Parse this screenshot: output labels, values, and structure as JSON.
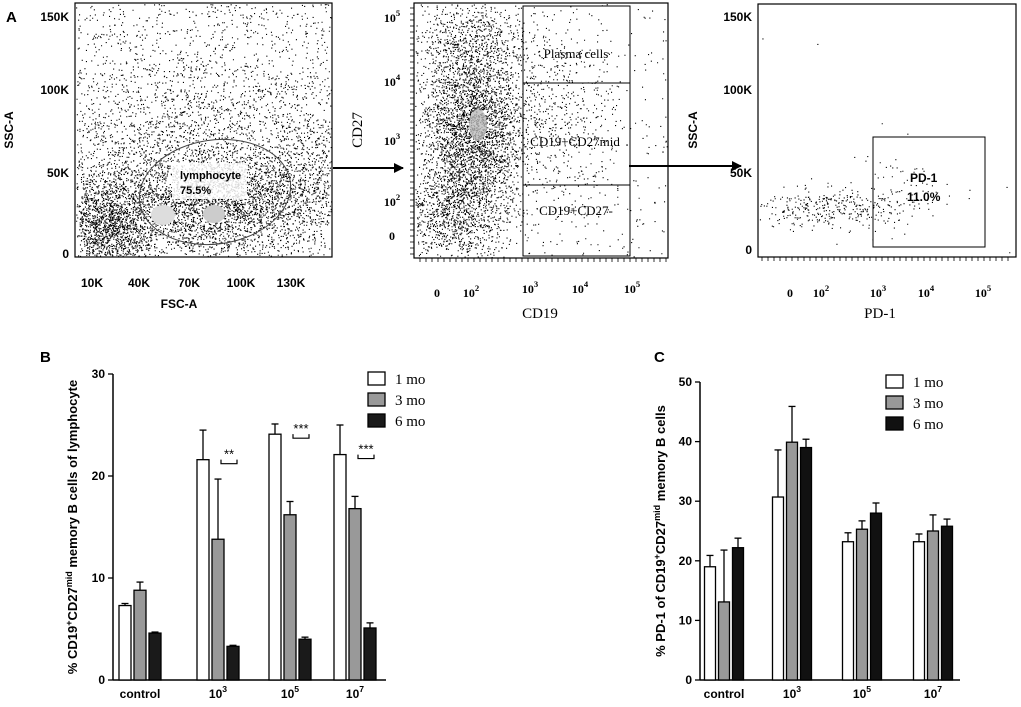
{
  "panel_labels": {
    "a": "A",
    "b": "B",
    "c": "C"
  },
  "flow": {
    "p1": {
      "xlabel": "FSC-A",
      "ylabel": "SSC-A",
      "xticks": [
        "10K",
        "40K",
        "70K",
        "100K",
        "130K"
      ],
      "yticks": [
        "150K",
        "100K",
        "50K",
        "0"
      ],
      "gate_name": "lymphocyte",
      "gate_pct": "75.5%"
    },
    "p2": {
      "xlabel": "CD19",
      "ylabel": "CD27",
      "xticks": [
        {
          "b": "0",
          "e": ""
        },
        {
          "b": "10",
          "e": "2"
        },
        {
          "b": "10",
          "e": "3"
        },
        {
          "b": "10",
          "e": "4"
        },
        {
          "b": "10",
          "e": "5"
        }
      ],
      "yticks": [
        {
          "b": "10",
          "e": "5"
        },
        {
          "b": "10",
          "e": "4"
        },
        {
          "b": "10",
          "e": "3"
        },
        {
          "b": "10",
          "e": "2"
        },
        {
          "b": "0",
          "e": ""
        }
      ],
      "gates": [
        "Plasma cells",
        "CD19+CD27mid",
        "CD19+CD27-"
      ]
    },
    "p3": {
      "xlabel": "PD-1",
      "ylabel": "SSC-A",
      "xticks": [
        {
          "b": "0",
          "e": ""
        },
        {
          "b": "10",
          "e": "2"
        },
        {
          "b": "10",
          "e": "3"
        },
        {
          "b": "10",
          "e": "4"
        },
        {
          "b": "10",
          "e": "5"
        }
      ],
      "yticks": [
        "150K",
        "100K",
        "50K",
        "0"
      ],
      "gate_name": "PD-1",
      "gate_pct": "11.0%"
    }
  },
  "chart_data": [
    {
      "panel": "B",
      "type": "bar",
      "categories": [
        {
          "b": "control",
          "e": ""
        },
        {
          "b": "10",
          "e": "3"
        },
        {
          "b": "10",
          "e": "5"
        },
        {
          "b": "10",
          "e": "7"
        }
      ],
      "series": [
        {
          "name": "1 mo",
          "color": "#ffffff",
          "values": [
            7.3,
            21.6,
            24.1,
            22.1
          ],
          "errors": [
            0.2,
            2.9,
            1.0,
            2.9
          ]
        },
        {
          "name": "3 mo",
          "color": "#999999",
          "values": [
            8.8,
            13.8,
            16.2,
            16.8
          ],
          "errors": [
            0.8,
            5.9,
            1.3,
            1.2
          ]
        },
        {
          "name": "6 mo",
          "color": "#1a1a1a",
          "values": [
            4.6,
            3.3,
            4.0,
            5.1
          ],
          "errors": [
            0.1,
            0.1,
            0.2,
            0.5
          ]
        }
      ],
      "ylabel": {
        "a": "% CD19",
        "s1": "+",
        "b": "CD27",
        "s2": "mid",
        "c": " memory B cells of lymphocyte"
      },
      "ylim": [
        0,
        30
      ],
      "yticks": [
        0,
        10,
        20,
        30
      ],
      "significance": [
        "",
        "**",
        "***",
        "***"
      ],
      "legend": "top-right"
    },
    {
      "panel": "C",
      "type": "bar",
      "categories": [
        {
          "b": "control",
          "e": ""
        },
        {
          "b": "10",
          "e": "3"
        },
        {
          "b": "10",
          "e": "5"
        },
        {
          "b": "10",
          "e": "7"
        }
      ],
      "series": [
        {
          "name": "1 mo",
          "color": "#ffffff",
          "values": [
            19.0,
            30.7,
            23.2,
            23.2
          ],
          "errors": [
            1.9,
            7.9,
            1.5,
            1.3
          ]
        },
        {
          "name": "3 mo",
          "color": "#999999",
          "values": [
            13.1,
            39.9,
            25.3,
            25.0
          ],
          "errors": [
            8.7,
            6.0,
            1.4,
            2.7
          ]
        },
        {
          "name": "6 mo",
          "color": "#111111",
          "values": [
            22.2,
            39.0,
            28.0,
            25.8
          ],
          "errors": [
            1.6,
            1.4,
            1.7,
            1.2
          ]
        }
      ],
      "ylabel": {
        "a": "% PD-1 of CD19",
        "s1": "+",
        "b": "CD27",
        "s2": "mid",
        "c": " memory B cells"
      },
      "ylim": [
        0,
        50
      ],
      "yticks": [
        0,
        10,
        20,
        30,
        40,
        50
      ],
      "significance": [
        "",
        "",
        "",
        ""
      ],
      "legend": "top-right"
    }
  ]
}
